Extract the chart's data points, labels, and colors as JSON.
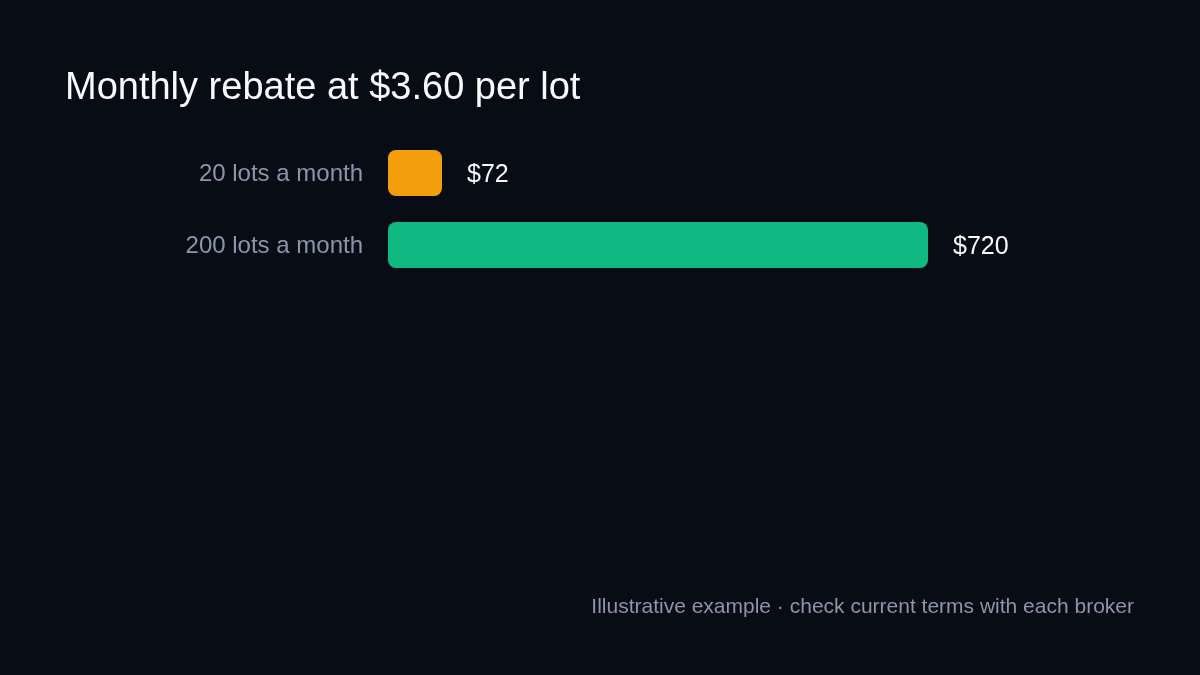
{
  "chart_data": {
    "type": "bar",
    "orientation": "horizontal",
    "title": "Monthly rebate at $3.60 per lot",
    "categories": [
      "20 lots a month",
      "200 lots a month"
    ],
    "values": [
      72,
      720
    ],
    "colors": [
      "#f59e0b",
      "#10b981"
    ],
    "value_labels": [
      "$72",
      "$720"
    ],
    "annotations": [
      "Illustrative example · check current terms with each broker"
    ]
  }
}
